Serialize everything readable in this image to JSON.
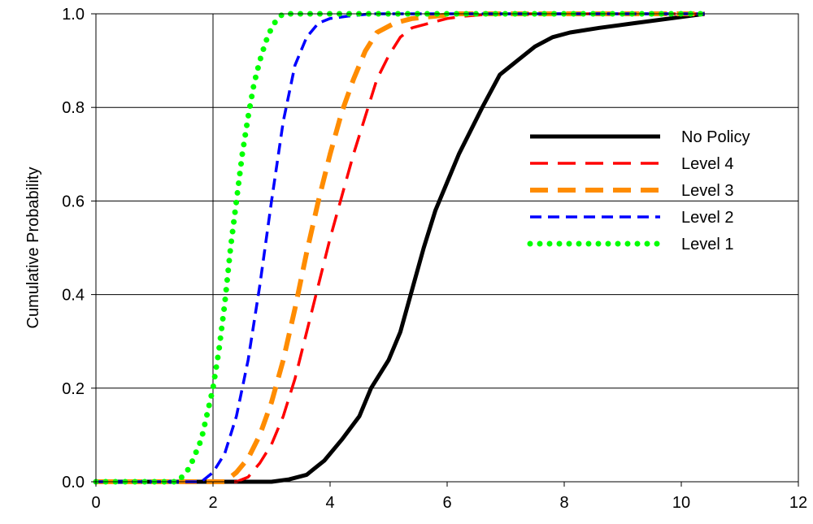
{
  "chart_data": {
    "type": "line",
    "title": "",
    "xlabel": "",
    "ylabel": "Cumulative Probability",
    "xlim": [
      0,
      12
    ],
    "ylim": [
      0,
      1
    ],
    "xticks": [
      "0",
      "2",
      "4",
      "6",
      "8",
      "10",
      "12"
    ],
    "yticks": [
      "0.0",
      "0.2",
      "0.4",
      "0.6",
      "0.8",
      "1.0"
    ],
    "grid": "horizontal, plus vertical at x=2",
    "legend_position": "right",
    "series": [
      {
        "name": "No Policy",
        "color": "#000000",
        "style": "solid",
        "x": [
          0,
          2.5,
          3.0,
          3.3,
          3.6,
          3.9,
          4.2,
          4.5,
          4.7,
          5.0,
          5.2,
          5.4,
          5.6,
          5.8,
          6.0,
          6.2,
          6.4,
          6.6,
          6.9,
          7.2,
          7.5,
          7.8,
          8.1,
          8.6,
          9.2,
          9.8,
          10.4
        ],
        "y": [
          0,
          0,
          0.0,
          0.005,
          0.015,
          0.045,
          0.09,
          0.14,
          0.2,
          0.26,
          0.32,
          0.41,
          0.5,
          0.58,
          0.64,
          0.7,
          0.75,
          0.8,
          0.87,
          0.9,
          0.93,
          0.95,
          0.96,
          0.97,
          0.98,
          0.99,
          1.0
        ]
      },
      {
        "name": "Level 4",
        "color": "#ff0000",
        "style": "long-dash",
        "x": [
          0,
          2.4,
          2.6,
          2.8,
          3.0,
          3.2,
          3.4,
          3.6,
          3.8,
          4.0,
          4.2,
          4.4,
          4.6,
          4.8,
          5.0,
          5.2,
          5.4,
          5.7,
          6.0,
          6.3,
          6.8,
          10.4
        ],
        "y": [
          0,
          0,
          0.01,
          0.04,
          0.08,
          0.14,
          0.22,
          0.32,
          0.42,
          0.52,
          0.61,
          0.7,
          0.78,
          0.86,
          0.91,
          0.95,
          0.97,
          0.98,
          0.99,
          0.995,
          1.0,
          1.0
        ]
      },
      {
        "name": "Level 3",
        "color": "#ff8c00",
        "style": "long-dash-thick",
        "x": [
          0,
          2.2,
          2.4,
          2.6,
          2.8,
          3.0,
          3.2,
          3.4,
          3.6,
          3.8,
          4.0,
          4.2,
          4.4,
          4.6,
          4.8,
          5.1,
          5.4,
          5.8,
          6.2,
          10.4
        ],
        "y": [
          0,
          0,
          0.02,
          0.05,
          0.1,
          0.17,
          0.26,
          0.37,
          0.49,
          0.6,
          0.7,
          0.79,
          0.86,
          0.92,
          0.96,
          0.98,
          0.99,
          0.995,
          1.0,
          1.0
        ]
      },
      {
        "name": "Level 2",
        "color": "#0000ff",
        "style": "short-dash",
        "x": [
          0,
          1.8,
          2.0,
          2.2,
          2.4,
          2.6,
          2.8,
          3.0,
          3.2,
          3.4,
          3.6,
          3.8,
          4.0,
          4.3,
          4.7,
          5.2,
          10.4
        ],
        "y": [
          0,
          0,
          0.02,
          0.06,
          0.14,
          0.26,
          0.42,
          0.6,
          0.77,
          0.89,
          0.95,
          0.98,
          0.99,
          0.995,
          1.0,
          1.0,
          1.0
        ]
      },
      {
        "name": "Level 1",
        "color": "#00ff00",
        "style": "dotted",
        "x": [
          0,
          1.4,
          1.6,
          1.8,
          2.0,
          2.1,
          2.2,
          2.3,
          2.4,
          2.5,
          2.6,
          2.7,
          2.8,
          2.9,
          3.0,
          3.1,
          3.2,
          3.4,
          3.8,
          10.4
        ],
        "y": [
          0,
          0,
          0.03,
          0.09,
          0.2,
          0.28,
          0.38,
          0.5,
          0.6,
          0.7,
          0.78,
          0.85,
          0.9,
          0.94,
          0.97,
          0.99,
          1.0,
          1.0,
          1.0,
          1.0
        ]
      }
    ]
  }
}
